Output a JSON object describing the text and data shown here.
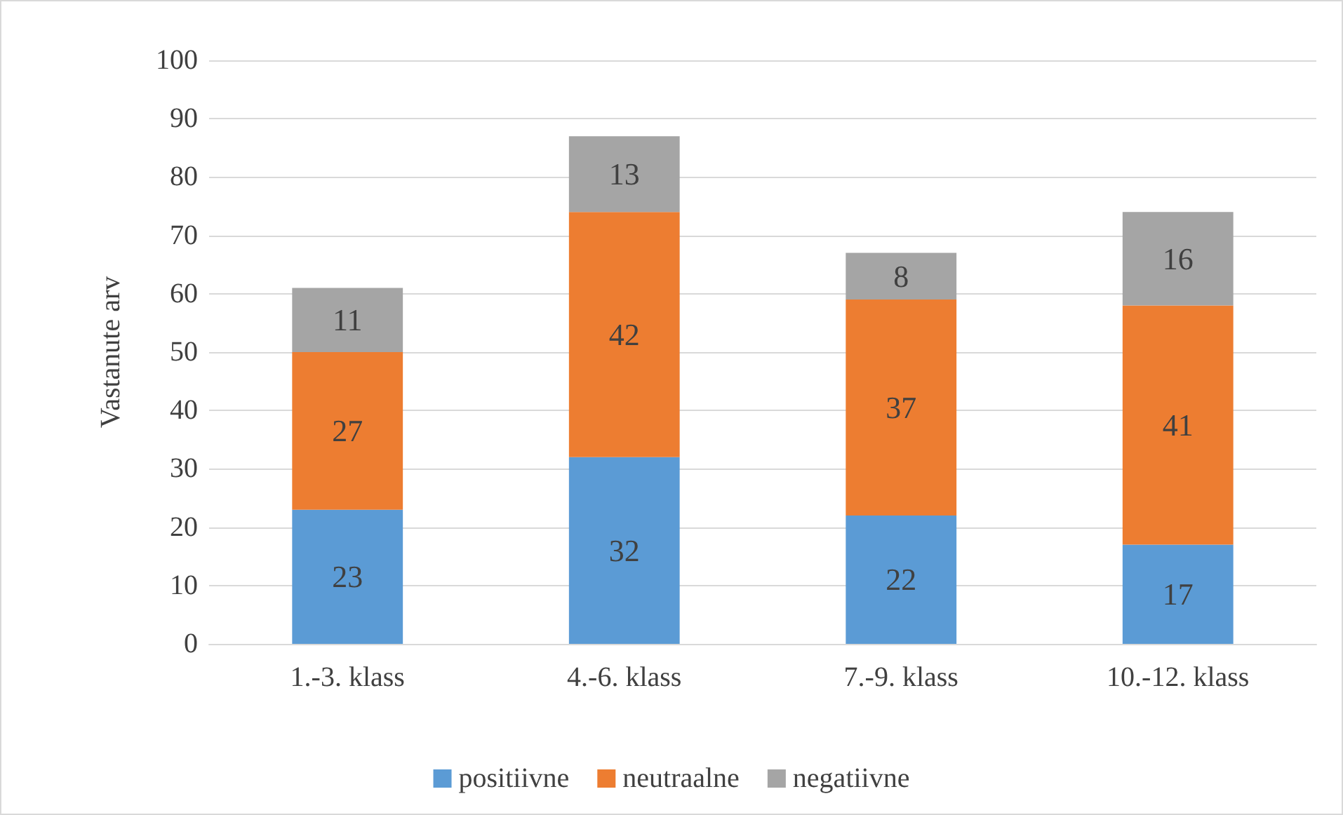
{
  "chart_data": {
    "type": "bar",
    "stacked": true,
    "ylabel": "Vastanute arv",
    "categories": [
      "1.-3. klass",
      "4.-6. klass",
      "7.-9. klass",
      "10.-12. klass"
    ],
    "series": [
      {
        "name": "positiivne",
        "color": "#5b9bd5",
        "values": [
          23,
          32,
          22,
          17
        ]
      },
      {
        "name": "neutraalne",
        "color": "#ed7d31",
        "values": [
          27,
          42,
          37,
          41
        ]
      },
      {
        "name": "negatiivne",
        "color": "#a5a5a5",
        "values": [
          11,
          13,
          8,
          16
        ]
      }
    ],
    "ylim": [
      0,
      100
    ],
    "yticks": [
      0,
      10,
      20,
      30,
      40,
      50,
      60,
      70,
      80,
      90,
      100
    ],
    "grid": "y",
    "legend": "bottom",
    "data_labels": true
  }
}
